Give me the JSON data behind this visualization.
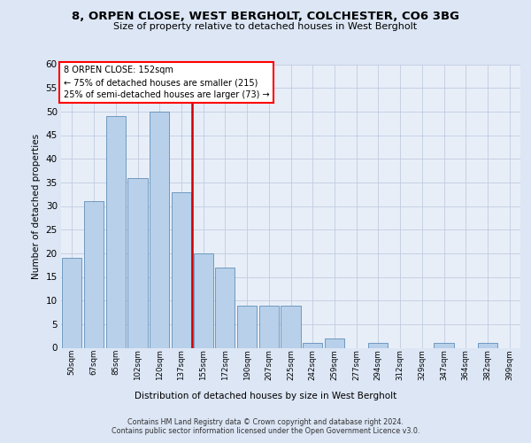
{
  "title1": "8, ORPEN CLOSE, WEST BERGHOLT, COLCHESTER, CO6 3BG",
  "title2": "Size of property relative to detached houses in West Bergholt",
  "xlabel": "Distribution of detached houses by size in West Bergholt",
  "ylabel": "Number of detached properties",
  "categories": [
    "50sqm",
    "67sqm",
    "85sqm",
    "102sqm",
    "120sqm",
    "137sqm",
    "155sqm",
    "172sqm",
    "190sqm",
    "207sqm",
    "225sqm",
    "242sqm",
    "259sqm",
    "277sqm",
    "294sqm",
    "312sqm",
    "329sqm",
    "347sqm",
    "364sqm",
    "382sqm",
    "399sqm"
  ],
  "values": [
    19,
    31,
    49,
    36,
    50,
    33,
    20,
    17,
    9,
    9,
    9,
    1,
    2,
    0,
    1,
    0,
    0,
    1,
    0,
    1,
    0
  ],
  "bar_color": "#b8d0ea",
  "bar_edge_color": "#6090b8",
  "vline_color": "#cc0000",
  "annotation_line1": "8 ORPEN CLOSE: 152sqm",
  "annotation_line2": "← 75% of detached houses are smaller (215)",
  "annotation_line3": "25% of semi-detached houses are larger (73) →",
  "ylim_max": 60,
  "ytick_step": 5,
  "footer1": "Contains HM Land Registry data © Crown copyright and database right 2024.",
  "footer2": "Contains public sector information licensed under the Open Government Licence v3.0.",
  "bg_color": "#dce6f5",
  "plot_bg": "#e8eef8",
  "grid_color": "#c0cce0",
  "title1_fontsize": 9.5,
  "title2_fontsize": 8.0,
  "ylabel_fontsize": 7.5,
  "xlabel_fontsize": 7.5,
  "ytick_fontsize": 7.5,
  "xtick_fontsize": 6.2,
  "footer_fontsize": 5.8,
  "ann_fontsize": 7.0
}
